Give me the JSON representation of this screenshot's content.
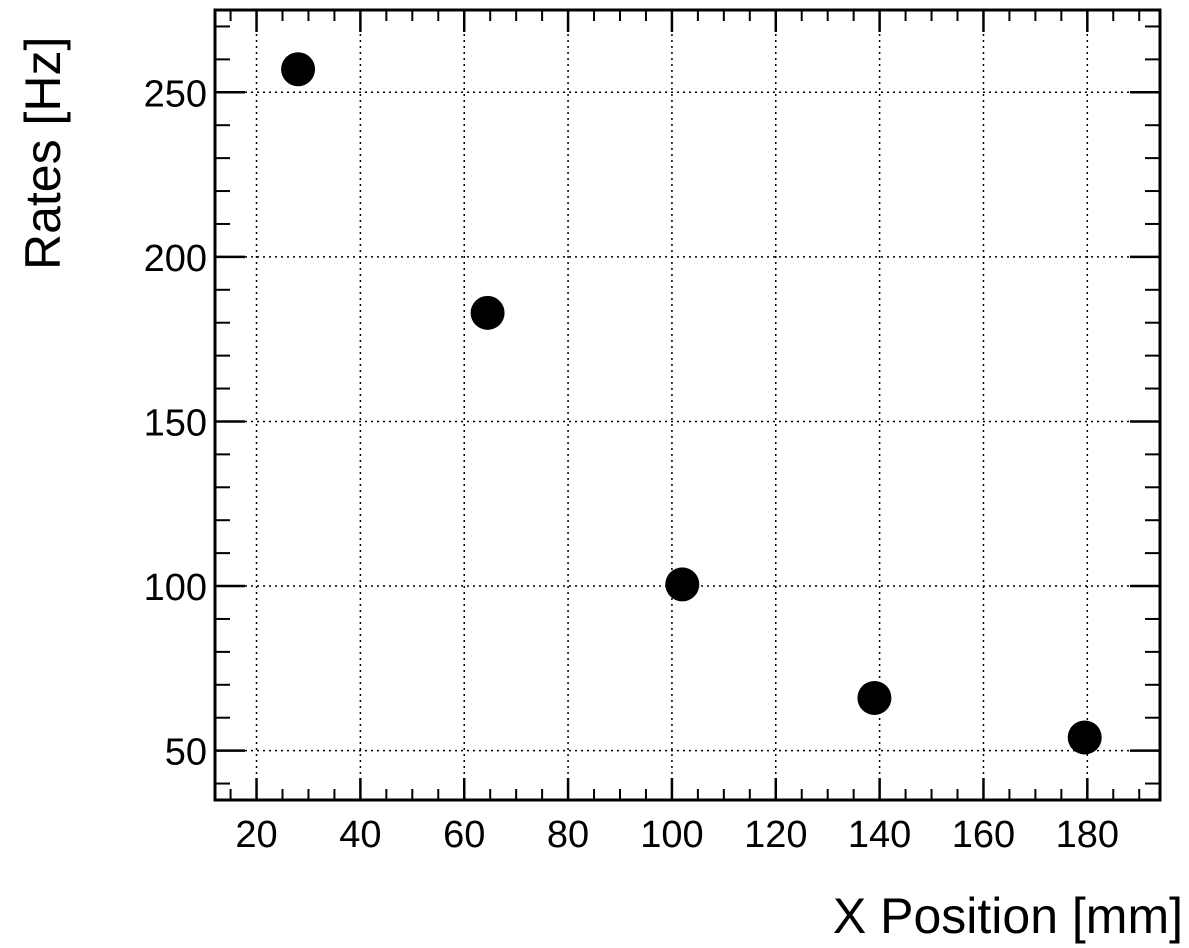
{
  "chart_data": {
    "type": "scatter",
    "xlabel": "X Position [mm]",
    "ylabel": "Rates [Hz]",
    "xlim": [
      12,
      194
    ],
    "ylim": [
      35,
      275
    ],
    "x_ticks": [
      20,
      40,
      60,
      80,
      100,
      120,
      140,
      160,
      180
    ],
    "y_ticks": [
      50,
      100,
      150,
      200,
      250
    ],
    "grid": true,
    "marker_color": "#000000",
    "series": [
      {
        "x": [
          28,
          64.5,
          102,
          139,
          179.5
        ],
        "y": [
          257,
          183,
          100.5,
          66,
          54
        ]
      }
    ]
  }
}
